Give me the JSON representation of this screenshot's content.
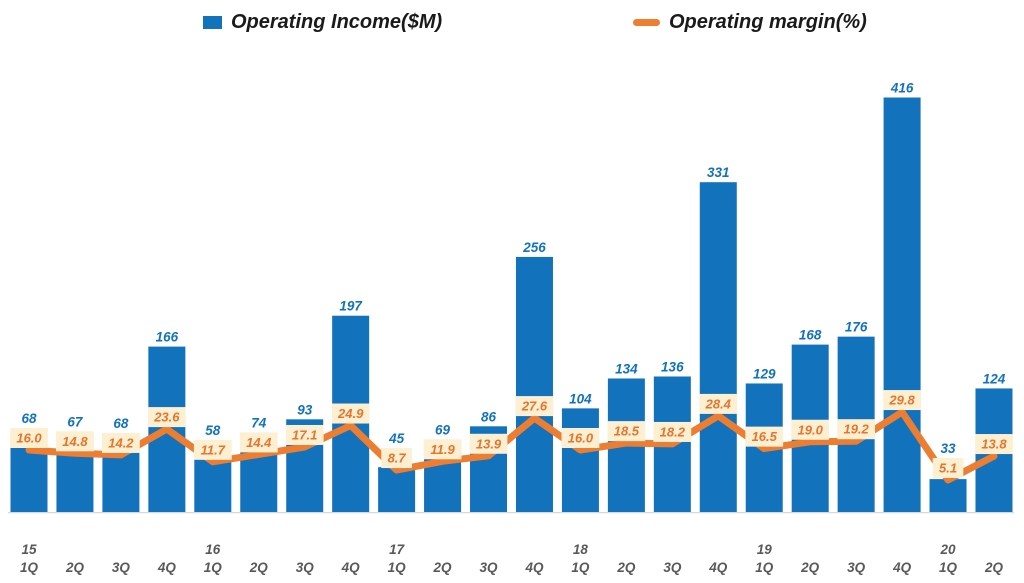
{
  "chart_data": {
    "type": "bar",
    "combo_note": "bar series with overlaid line series (dual implicit axes, no visible axis scales)",
    "title": "",
    "xlabel": "",
    "ylabel": "",
    "grid": false,
    "legend_position": "top",
    "categories": [
      "1Q",
      "2Q",
      "3Q",
      "4Q",
      "1Q",
      "2Q",
      "3Q",
      "4Q",
      "1Q",
      "2Q",
      "3Q",
      "4Q",
      "1Q",
      "2Q",
      "3Q",
      "4Q",
      "1Q",
      "2Q",
      "3Q",
      "4Q",
      "1Q",
      "2Q"
    ],
    "year_labels": [
      {
        "index": 0,
        "label": "15"
      },
      {
        "index": 4,
        "label": "16"
      },
      {
        "index": 8,
        "label": "17"
      },
      {
        "index": 12,
        "label": "18"
      },
      {
        "index": 16,
        "label": "19"
      },
      {
        "index": 20,
        "label": "20"
      }
    ],
    "series": [
      {
        "name": "Operating Income($M)",
        "kind": "bar",
        "color": "#1272BC",
        "label_color": "#1272BC",
        "values": [
          68,
          67,
          68,
          166,
          58,
          74,
          93,
          197,
          45,
          69,
          86,
          256,
          104,
          134,
          136,
          331,
          129,
          168,
          176,
          416,
          33,
          124
        ]
      },
      {
        "name": "Operating margin(%)",
        "kind": "line",
        "color": "#ED7D31",
        "label_color": "#E8742B",
        "label_bg": "#FDF0D2",
        "values": [
          16.0,
          14.8,
          14.2,
          23.6,
          11.7,
          14.4,
          17.1,
          24.9,
          8.7,
          11.9,
          13.9,
          27.6,
          16.0,
          18.5,
          18.2,
          28.4,
          16.5,
          19.0,
          19.2,
          29.8,
          5.1,
          13.8
        ]
      }
    ],
    "ylim_bar": [
      0,
      430
    ],
    "ylim_margin": [
      0,
      35
    ],
    "axis_text_color": "#595959",
    "baseline_color": "#D9D9D9"
  }
}
